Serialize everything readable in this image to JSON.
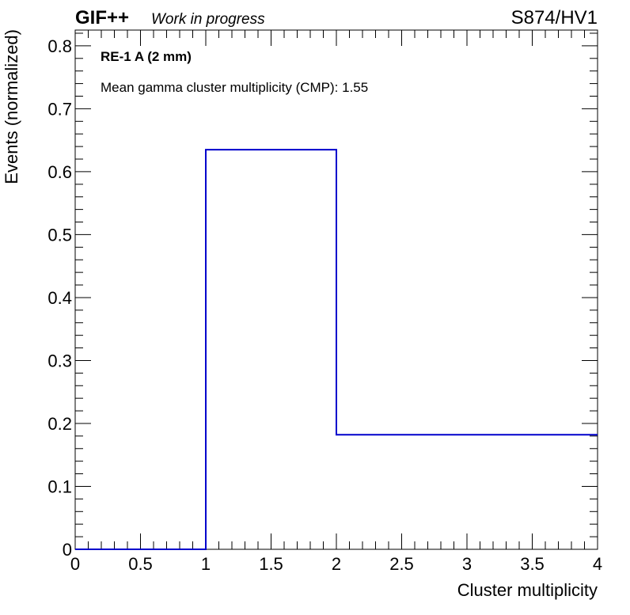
{
  "header": {
    "brand": "GIF++",
    "status": "Work in progress",
    "run": "S874/HV1"
  },
  "chart_data": {
    "type": "bar",
    "style": "step-histogram",
    "bins": [
      [
        0,
        1
      ],
      [
        1,
        2
      ],
      [
        2,
        4
      ]
    ],
    "values": [
      0.0,
      0.635,
      0.182
    ],
    "xlabel": "Cluster multiplicity",
    "ylabel": "Events (normalized)",
    "xlim": [
      0,
      4
    ],
    "ylim": [
      0,
      0.825
    ],
    "x_ticks": [
      "0",
      "0.5",
      "1",
      "1.5",
      "2",
      "2.5",
      "3",
      "3.5",
      "4"
    ],
    "y_ticks": [
      "0",
      "0.1",
      "0.2",
      "0.3",
      "0.4",
      "0.5",
      "0.6",
      "0.7",
      "0.8"
    ],
    "annotations": [
      "RE-1 A (2 mm)",
      "Mean gamma cluster multiplicity (CMP): 1.55"
    ],
    "line_color": "#0000cc",
    "grid": false,
    "legend": "none"
  }
}
